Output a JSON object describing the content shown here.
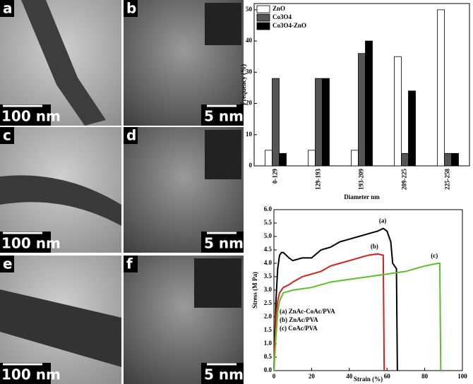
{
  "images": [
    {
      "label": "a",
      "scale": "100 nm"
    },
    {
      "label": "b",
      "scale": "5 nm"
    },
    {
      "label": "c",
      "scale": "100 nm"
    },
    {
      "label": "d",
      "scale": "5 nm"
    },
    {
      "label": "e",
      "scale": "100 nm"
    },
    {
      "label": "f",
      "scale": "5 nm"
    }
  ],
  "chart_data": [
    {
      "type": "bar",
      "xlabel": "Diameter nm",
      "ylabel": "Frequency (%)",
      "categories": [
        "0-129",
        "129-193",
        "193-209",
        "209-225",
        "225-258"
      ],
      "series": [
        {
          "name": "ZnO",
          "color": "#ffffff",
          "values": [
            5,
            5,
            5,
            35,
            50
          ]
        },
        {
          "name": "Co3O4",
          "color": "#555555",
          "values": [
            28,
            28,
            36,
            4,
            4
          ]
        },
        {
          "name": "Co3O4-ZnO",
          "color": "#000000",
          "values": [
            4,
            28,
            40,
            24,
            4
          ]
        }
      ],
      "ylim": [
        0,
        52
      ],
      "yticks": [
        0,
        10,
        20,
        30,
        40,
        50
      ],
      "legend": "top-left"
    },
    {
      "type": "line",
      "xlabel": "Strain (%)",
      "ylabel": "Stress (M Pa)",
      "series": [
        {
          "name": "(a) ZnAc-CoAc/PVA",
          "color": "#000000",
          "x": [
            0,
            1,
            2,
            3,
            4,
            5,
            8,
            10,
            15,
            20,
            25,
            30,
            35,
            40,
            45,
            50,
            55,
            58,
            60,
            62,
            63,
            65,
            65.5
          ],
          "values": [
            0,
            2.5,
            3.8,
            4.3,
            4.4,
            4.4,
            4.2,
            4.1,
            4.2,
            4.2,
            4.5,
            4.6,
            4.8,
            4.9,
            5.0,
            5.1,
            5.2,
            5.3,
            5.2,
            4.8,
            4.0,
            3.8,
            0
          ]
        },
        {
          "name": "(b) ZnAc/PVA",
          "color": "#d42020",
          "x": [
            0,
            1,
            2,
            3,
            5,
            8,
            10,
            15,
            20,
            25,
            30,
            35,
            40,
            45,
            50,
            55,
            58,
            58.5
          ],
          "values": [
            0,
            2.0,
            2.6,
            2.9,
            3.1,
            3.2,
            3.3,
            3.5,
            3.6,
            3.7,
            3.9,
            4.0,
            4.1,
            4.2,
            4.3,
            4.35,
            4.3,
            0
          ]
        },
        {
          "name": "(c) CoAc/PVA",
          "color": "#5cbf2a",
          "x": [
            0,
            1,
            2,
            3,
            5,
            10,
            20,
            30,
            40,
            50,
            60,
            70,
            80,
            87,
            88,
            88.5
          ],
          "values": [
            0,
            1.2,
            2.2,
            2.6,
            2.9,
            3.0,
            3.1,
            3.3,
            3.4,
            3.5,
            3.6,
            3.7,
            3.9,
            4.0,
            4.0,
            0
          ]
        }
      ],
      "annotations": [
        "(a)",
        "(b)",
        "(c)"
      ],
      "xlim": [
        0,
        100
      ],
      "xticks": [
        0,
        20,
        40,
        60,
        80,
        100
      ],
      "ylim": [
        0,
        6
      ],
      "yticks": [
        {
          "value": 0,
          "label": "0.0"
        },
        0.5,
        {
          "value": 1,
          "label": "1.0"
        },
        1.5,
        {
          "value": 2,
          "label": "2.0"
        },
        2.5,
        {
          "value": 3,
          "label": "3.0"
        },
        3.5,
        {
          "value": 4,
          "label": "4.0"
        },
        4.5,
        {
          "value": 5,
          "label": "5.0"
        },
        5.5,
        {
          "value": 6,
          "label": "6.0"
        }
      ],
      "legend": "bottom-left"
    }
  ]
}
